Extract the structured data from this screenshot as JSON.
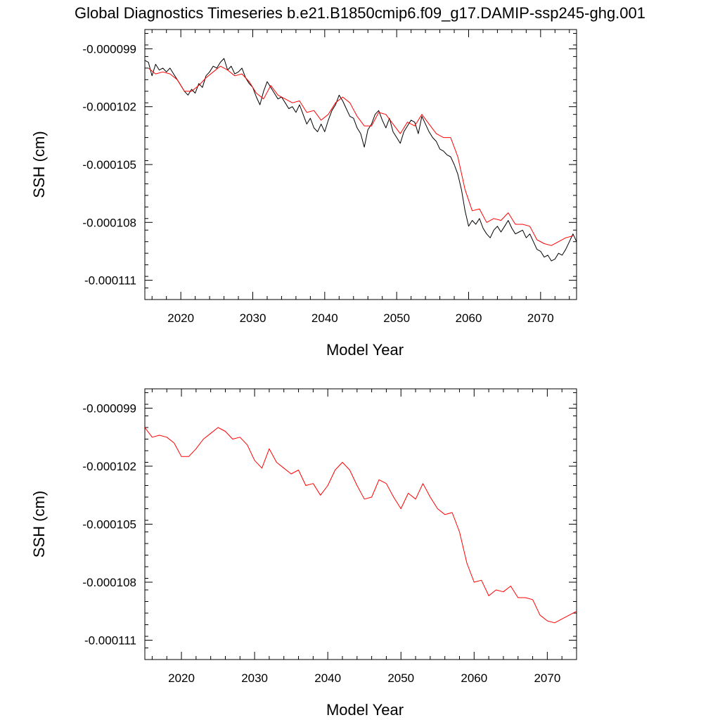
{
  "figure": {
    "title": "Global Diagnostics Timeseries b.e21.B1850cmip6.f09_g17.DAMIP-ssp245-ghg.001"
  },
  "chart_data": [
    {
      "type": "line",
      "title": "Global Diagnostics Timeseries b.e21.B1850cmip6.f09_g17.DAMIP-ssp245-ghg.001",
      "xlabel": "Model Year",
      "ylabel": "SSH (cm)",
      "xlim": [
        2015,
        2075
      ],
      "ylim": [
        -0.000112,
        -9.8e-05
      ],
      "x_ticks": [
        2020,
        2030,
        2040,
        2050,
        2060,
        2070
      ],
      "y_ticks": [
        -9.9e-05,
        -0.000102,
        -0.000105,
        -0.000108,
        -0.000111
      ],
      "y_tick_labels": [
        "-0.000099",
        "-0.000102",
        "-0.000105",
        "-0.000108",
        "-0.000111"
      ],
      "grid": false,
      "series": [
        {
          "color": "#000000",
          "x": [
            2015.0,
            2015.5,
            2016.0,
            2016.5,
            2017.0,
            2017.5,
            2018.0,
            2018.5,
            2019.0,
            2019.5,
            2020.0,
            2020.5,
            2021.0,
            2021.5,
            2022.0,
            2022.5,
            2023.0,
            2023.5,
            2024.0,
            2024.5,
            2025.0,
            2025.5,
            2026.0,
            2026.5,
            2027.0,
            2027.5,
            2028.0,
            2028.5,
            2029.0,
            2029.5,
            2030.0,
            2030.5,
            2031.0,
            2031.5,
            2032.0,
            2032.5,
            2033.0,
            2033.5,
            2034.0,
            2034.5,
            2035.0,
            2035.5,
            2036.0,
            2036.5,
            2037.0,
            2037.5,
            2038.0,
            2038.5,
            2039.0,
            2039.5,
            2040.0,
            2040.5,
            2041.0,
            2041.5,
            2042.0,
            2042.5,
            2043.0,
            2043.5,
            2044.0,
            2044.5,
            2045.0,
            2045.5,
            2046.0,
            2046.5,
            2047.0,
            2047.5,
            2048.0,
            2048.5,
            2049.0,
            2049.5,
            2050.0,
            2050.5,
            2051.0,
            2051.5,
            2052.0,
            2052.5,
            2053.0,
            2053.5,
            2054.0,
            2054.5,
            2055.0,
            2055.5,
            2056.0,
            2056.5,
            2057.0,
            2057.5,
            2058.0,
            2058.5,
            2059.0,
            2059.5,
            2060.0,
            2060.5,
            2061.0,
            2061.5,
            2062.0,
            2062.5,
            2063.0,
            2063.5,
            2064.0,
            2064.5,
            2065.0,
            2065.5,
            2066.0,
            2066.5,
            2067.0,
            2067.5,
            2068.0,
            2068.5,
            2069.0,
            2069.5,
            2070.0,
            2070.5,
            2071.0,
            2071.5,
            2072.0,
            2072.5,
            2073.0,
            2073.5,
            2074.0,
            2074.5,
            2075.0
          ],
          "values": [
            -9.96e-05,
            -9.97e-05,
            -0.0001004,
            -9.98e-05,
            -0.0001001,
            -0.0001,
            -0.0001002,
            -0.0001,
            -0.0001003,
            -0.0001006,
            -0.0001009,
            -0.0001012,
            -0.0001014,
            -0.0001011,
            -0.0001013,
            -0.0001008,
            -0.000101,
            -0.0001004,
            -0.0001002,
            -9.99e-05,
            -0.0001,
            -9.97e-05,
            -9.95e-05,
            -0.0001001,
            -9.99e-05,
            -0.0001003,
            -0.0001002,
            -0.0001,
            -0.0001005,
            -0.0001008,
            -0.000101,
            -0.0001015,
            -0.0001019,
            -0.0001012,
            -0.0001007,
            -0.000101,
            -0.0001013,
            -0.0001016,
            -0.0001015,
            -0.0001018,
            -0.0001021,
            -0.000102,
            -0.0001023,
            -0.0001019,
            -0.0001024,
            -0.0001029,
            -0.0001026,
            -0.0001031,
            -0.0001033,
            -0.0001029,
            -0.0001033,
            -0.0001027,
            -0.0001022,
            -0.0001019,
            -0.0001014,
            -0.0001017,
            -0.0001021,
            -0.0001025,
            -0.0001026,
            -0.0001031,
            -0.0001034,
            -0.0001041,
            -0.0001032,
            -0.0001029,
            -0.0001024,
            -0.0001022,
            -0.0001027,
            -0.0001031,
            -0.0001026,
            -0.0001033,
            -0.0001036,
            -0.0001039,
            -0.0001033,
            -0.000103,
            -0.0001027,
            -0.0001028,
            -0.0001034,
            -0.0001025,
            -0.0001029,
            -0.0001033,
            -0.0001036,
            -0.0001038,
            -0.0001042,
            -0.0001043,
            -0.0001045,
            -0.0001046,
            -0.000105,
            -0.0001055,
            -0.0001063,
            -0.0001074,
            -0.0001082,
            -0.0001079,
            -0.0001081,
            -0.0001078,
            -0.0001083,
            -0.0001086,
            -0.0001088,
            -0.0001084,
            -0.0001082,
            -0.0001085,
            -0.0001082,
            -0.0001079,
            -0.0001083,
            -0.0001086,
            -0.0001085,
            -0.0001084,
            -0.0001088,
            -0.0001086,
            -0.000109,
            -0.0001094,
            -0.0001095,
            -0.0001098,
            -0.0001097,
            -0.00011,
            -0.0001099,
            -0.0001096,
            -0.0001097,
            -0.0001094,
            -0.000109,
            -0.0001086,
            -0.000109
          ]
        },
        {
          "color": "#ff0000",
          "x": [
            2015.5,
            2016.5,
            2017.5,
            2018.5,
            2019.5,
            2020.5,
            2021.5,
            2022.5,
            2023.5,
            2024.5,
            2025.5,
            2026.5,
            2027.5,
            2028.5,
            2029.5,
            2030.5,
            2031.5,
            2032.5,
            2033.5,
            2034.5,
            2035.5,
            2036.5,
            2037.5,
            2038.5,
            2039.5,
            2040.5,
            2041.5,
            2042.5,
            2043.5,
            2044.5,
            2045.5,
            2046.5,
            2047.5,
            2048.5,
            2049.5,
            2050.5,
            2051.5,
            2052.5,
            2053.5,
            2054.5,
            2055.5,
            2056.5,
            2057.5,
            2058.5,
            2059.5,
            2060.5,
            2061.5,
            2062.5,
            2063.5,
            2064.5,
            2065.5,
            2066.5,
            2067.5,
            2068.5,
            2069.5,
            2070.5,
            2071.5,
            2072.5,
            2073.5,
            2074.5
          ],
          "values": [
            -0.0001,
            -0.0001003,
            -0.0001002,
            -0.0001003,
            -0.0001006,
            -0.0001012,
            -0.0001012,
            -0.0001009,
            -0.0001005,
            -0.0001002,
            -9.99e-05,
            -0.0001001,
            -0.0001004,
            -0.0001003,
            -0.0001007,
            -0.0001013,
            -0.0001016,
            -0.0001009,
            -0.0001014,
            -0.0001016,
            -0.0001018,
            -0.0001017,
            -0.0001023,
            -0.0001022,
            -0.0001027,
            -0.0001024,
            -0.0001018,
            -0.0001015,
            -0.0001018,
            -0.0001025,
            -0.000103,
            -0.000103,
            -0.0001023,
            -0.0001024,
            -0.0001029,
            -0.0001034,
            -0.0001028,
            -0.000103,
            -0.0001024,
            -0.0001029,
            -0.0001034,
            -0.0001036,
            -0.0001036,
            -0.0001046,
            -0.0001063,
            -0.0001074,
            -0.0001073,
            -0.000108,
            -0.0001078,
            -0.0001079,
            -0.0001075,
            -0.0001081,
            -0.0001081,
            -0.0001082,
            -0.0001089,
            -0.0001091,
            -0.0001092,
            -0.000109,
            -0.0001088,
            -0.0001087
          ]
        }
      ]
    },
    {
      "type": "line",
      "title": "",
      "xlabel": "Model Year",
      "ylabel": "SSH (cm)",
      "xlim": [
        2015,
        2074
      ],
      "ylim": [
        -0.000112,
        -9.8e-05
      ],
      "x_ticks": [
        2020,
        2030,
        2040,
        2050,
        2060,
        2070
      ],
      "y_ticks": [
        -9.9e-05,
        -0.000102,
        -0.000105,
        -0.000108,
        -0.000111
      ],
      "y_tick_labels": [
        "-0.000099",
        "-0.000102",
        "-0.000105",
        "-0.000108",
        "-0.000111"
      ],
      "grid": false,
      "series": [
        {
          "color": "#ff0000",
          "x": [
            2015.0,
            2016.0,
            2017.0,
            2018.0,
            2019.0,
            2020.0,
            2021.0,
            2022.0,
            2023.0,
            2024.0,
            2025.0,
            2026.0,
            2027.0,
            2028.0,
            2029.0,
            2030.0,
            2031.0,
            2032.0,
            2033.0,
            2034.0,
            2035.0,
            2036.0,
            2037.0,
            2038.0,
            2039.0,
            2040.0,
            2041.0,
            2042.0,
            2043.0,
            2044.0,
            2045.0,
            2046.0,
            2047.0,
            2048.0,
            2049.0,
            2050.0,
            2051.0,
            2052.0,
            2053.0,
            2054.0,
            2055.0,
            2056.0,
            2057.0,
            2058.0,
            2059.0,
            2060.0,
            2061.0,
            2062.0,
            2063.0,
            2064.0,
            2065.0,
            2066.0,
            2067.0,
            2068.0,
            2069.0,
            2070.0,
            2071.0,
            2072.0,
            2073.0,
            2074.0
          ],
          "values": [
            -0.0001,
            -0.0001005,
            -0.0001004,
            -0.0001005,
            -0.0001008,
            -0.0001015,
            -0.0001015,
            -0.0001011,
            -0.0001006,
            -0.0001003,
            -0.0001,
            -0.0001002,
            -0.0001006,
            -0.0001005,
            -0.0001009,
            -0.0001017,
            -0.0001021,
            -0.0001011,
            -0.0001018,
            -0.0001021,
            -0.0001024,
            -0.0001022,
            -0.000103,
            -0.0001029,
            -0.0001035,
            -0.000103,
            -0.0001022,
            -0.0001018,
            -0.0001022,
            -0.000103,
            -0.0001037,
            -0.0001036,
            -0.0001027,
            -0.0001029,
            -0.0001036,
            -0.0001042,
            -0.0001034,
            -0.0001037,
            -0.0001029,
            -0.0001036,
            -0.0001042,
            -0.0001045,
            -0.0001044,
            -0.0001054,
            -0.000107,
            -0.000108,
            -0.0001079,
            -0.0001087,
            -0.0001084,
            -0.0001085,
            -0.0001082,
            -0.0001088,
            -0.0001088,
            -0.0001089,
            -0.0001097,
            -0.00011,
            -0.0001101,
            -0.0001099,
            -0.0001097,
            -0.0001095
          ]
        }
      ]
    }
  ]
}
